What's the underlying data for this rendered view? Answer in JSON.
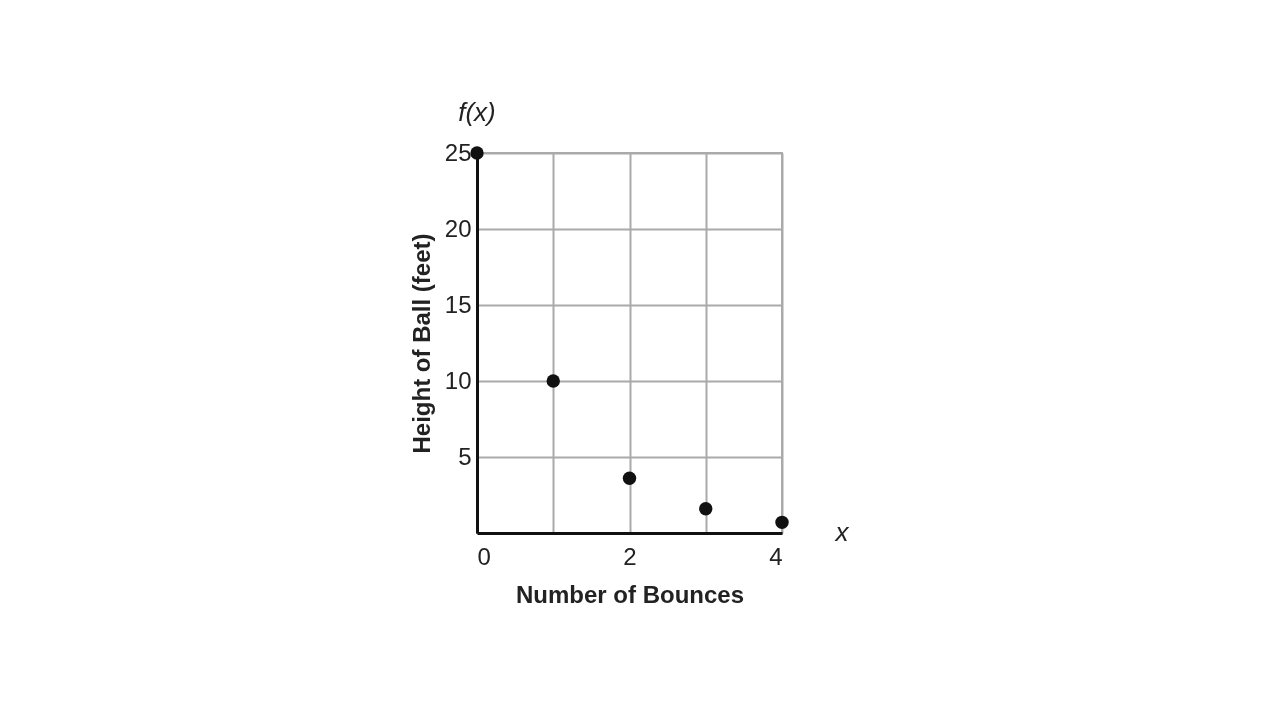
{
  "chart_data": {
    "type": "scatter",
    "xlabel": "Number of Bounces",
    "ylabel": "Height of Ball (feet)",
    "x": [
      0,
      1,
      2,
      3,
      4
    ],
    "series": [
      {
        "color": "#111111",
        "values": [
          25,
          10,
          3.6,
          1.6,
          0.7
        ]
      }
    ],
    "xlim": [
      0,
      4
    ],
    "ylim": [
      0,
      25
    ],
    "xticks": [
      0,
      {
        "value": 1,
        "label": null
      },
      2,
      {
        "value": 3,
        "label": null
      },
      4
    ],
    "yticks": [
      {
        "value": 0,
        "label": null
      },
      5,
      10,
      15,
      20,
      25
    ],
    "grid": true,
    "marker": "circle",
    "annotations": [
      "f(x)",
      "x"
    ]
  }
}
